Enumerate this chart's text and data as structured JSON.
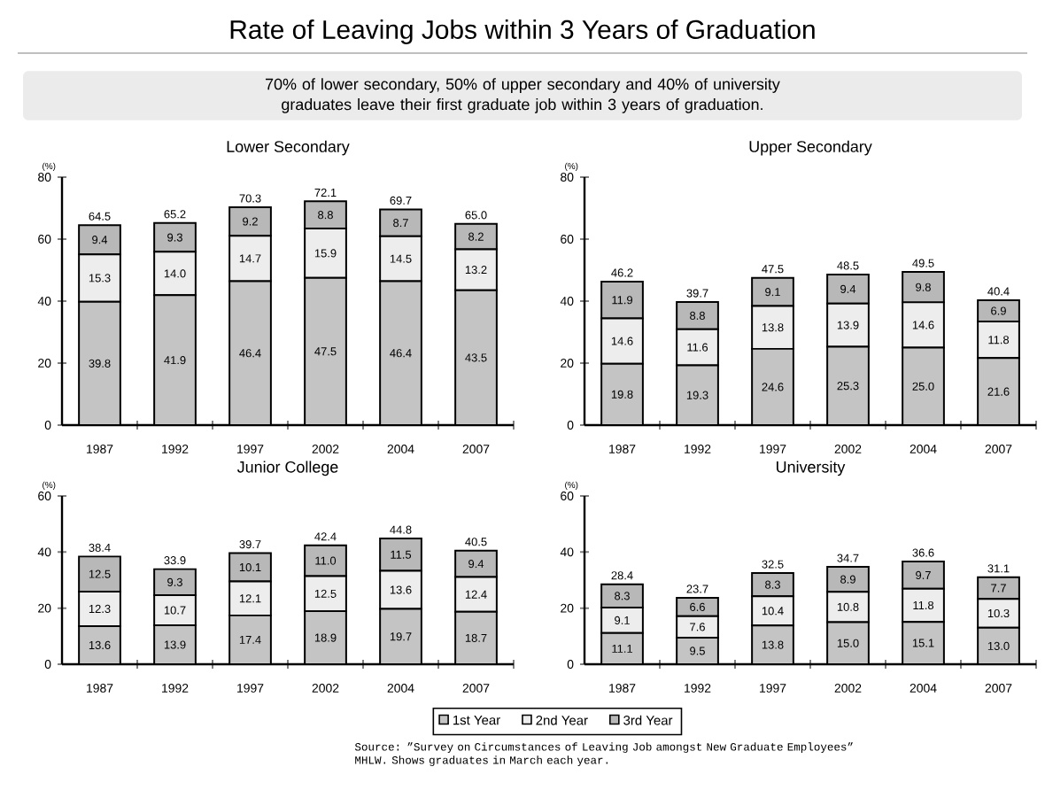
{
  "chart_data": [
    {
      "type": "other",
      "title": "Rate of Leaving Jobs within 3 Years of Graduation",
      "subtitle": "70% of lower secondary, 50% of upper secondary and 40% of university graduates leave their first graduate job within 3 years of graduation.",
      "annotations": [
        "Source: ”Survey on Circumstances of Leaving Job amongst New Graduate Employees” MHLW. Shows graduates in March each year."
      ]
    },
    {
      "type": "bar",
      "stacked": true,
      "title": "Lower Secondary",
      "ylabel": "(%)",
      "categories": [
        "1987",
        "1992",
        "1997",
        "2002",
        "2004",
        "2007"
      ],
      "ylim": [
        0,
        80
      ],
      "yticks": [
        0,
        20,
        40,
        60,
        80
      ],
      "totals": [
        "64.5",
        "65.2",
        "70.3",
        "72.1",
        "69.7",
        "65.0"
      ],
      "series": [
        {
          "color": "#c4c4c4",
          "values": [
            39.8,
            41.9,
            46.4,
            47.5,
            46.4,
            43.5
          ],
          "value_labels": [
            "39.8",
            "41.9",
            "46.4",
            "47.5",
            "46.4",
            "43.5"
          ]
        },
        {
          "color": "#ededed",
          "values": [
            15.3,
            14.0,
            14.7,
            15.9,
            14.5,
            13.2
          ],
          "value_labels": [
            "15.3",
            "14.0",
            "14.7",
            "15.9",
            "14.5",
            "13.2"
          ]
        },
        {
          "color": "#b8b8b8",
          "values": [
            9.4,
            9.3,
            9.2,
            8.8,
            8.7,
            8.2
          ],
          "value_labels": [
            "9.4",
            "9.3",
            "9.2",
            "8.8",
            "8.7",
            "8.2"
          ]
        }
      ]
    },
    {
      "type": "bar",
      "stacked": true,
      "title": "Upper Secondary",
      "ylabel": "(%)",
      "categories": [
        "1987",
        "1992",
        "1997",
        "2002",
        "2004",
        "2007"
      ],
      "ylim": [
        0,
        80
      ],
      "yticks": [
        0,
        20,
        40,
        60,
        80
      ],
      "totals": [
        "46.2",
        "39.7",
        "47.5",
        "48.5",
        "49.5",
        "40.4"
      ],
      "series": [
        {
          "color": "#c4c4c4",
          "values": [
            19.8,
            19.3,
            24.6,
            25.3,
            25.0,
            21.6
          ],
          "value_labels": [
            "19.8",
            "19.3",
            "24.6",
            "25.3",
            "25.0",
            "21.6"
          ]
        },
        {
          "color": "#ededed",
          "values": [
            14.6,
            11.6,
            13.8,
            13.9,
            14.6,
            11.8
          ],
          "value_labels": [
            "14.6",
            "11.6",
            "13.8",
            "13.9",
            "14.6",
            "11.8"
          ]
        },
        {
          "color": "#b8b8b8",
          "values": [
            11.9,
            8.8,
            9.1,
            9.4,
            9.8,
            6.9
          ],
          "value_labels": [
            "11.9",
            "8.8",
            "9.1",
            "9.4",
            "9.8",
            "6.9"
          ]
        }
      ]
    },
    {
      "type": "bar",
      "stacked": true,
      "title": "Junior College",
      "ylabel": "(%)",
      "categories": [
        "1987",
        "1992",
        "1997",
        "2002",
        "2004",
        "2007"
      ],
      "ylim": [
        0,
        60
      ],
      "yticks": [
        0,
        20,
        40,
        60
      ],
      "totals": [
        "38.4",
        "33.9",
        "39.7",
        "42.4",
        "44.8",
        "40.5"
      ],
      "series": [
        {
          "color": "#c4c4c4",
          "values": [
            13.6,
            13.9,
            17.4,
            18.9,
            19.7,
            18.7
          ],
          "value_labels": [
            "13.6",
            "13.9",
            "17.4",
            "18.9",
            "19.7",
            "18.7"
          ]
        },
        {
          "color": "#ededed",
          "values": [
            12.3,
            10.7,
            12.1,
            12.5,
            13.6,
            12.4
          ],
          "value_labels": [
            "12.3",
            "10.7",
            "12.1",
            "12.5",
            "13.6",
            "12.4"
          ]
        },
        {
          "color": "#b8b8b8",
          "values": [
            12.5,
            9.3,
            10.1,
            11.0,
            11.5,
            9.4
          ],
          "value_labels": [
            "12.5",
            "9.3",
            "10.1",
            "11.0",
            "11.5",
            "9.4"
          ]
        }
      ]
    },
    {
      "type": "bar",
      "stacked": true,
      "title": "University",
      "ylabel": "(%)",
      "categories": [
        "1987",
        "1992",
        "1997",
        "2002",
        "2004",
        "2007"
      ],
      "ylim": [
        0,
        60
      ],
      "yticks": [
        0,
        20,
        40,
        60
      ],
      "legend": "bottom",
      "totals": [
        "28.4",
        "23.7",
        "32.5",
        "34.7",
        "36.6",
        "31.1"
      ],
      "series": [
        {
          "name": "1st Year",
          "color": "#c4c4c4",
          "values": [
            11.1,
            9.5,
            13.8,
            15.0,
            15.1,
            13.0
          ],
          "value_labels": [
            "11.1",
            "9.5",
            "13.8",
            "15.0",
            "15.1",
            "13.0"
          ]
        },
        {
          "name": "2nd Year",
          "color": "#ededed",
          "values": [
            9.1,
            7.6,
            10.4,
            10.8,
            11.8,
            10.3
          ],
          "value_labels": [
            "9.1",
            "7.6",
            "10.4",
            "10.8",
            "11.8",
            "10.3"
          ]
        },
        {
          "name": "3rd Year",
          "color": "#b8b8b8",
          "values": [
            8.3,
            6.6,
            8.3,
            8.9,
            9.7,
            7.7
          ],
          "value_labels": [
            "8.3",
            "6.6",
            "8.3",
            "8.9",
            "9.7",
            "7.7"
          ]
        }
      ]
    }
  ]
}
